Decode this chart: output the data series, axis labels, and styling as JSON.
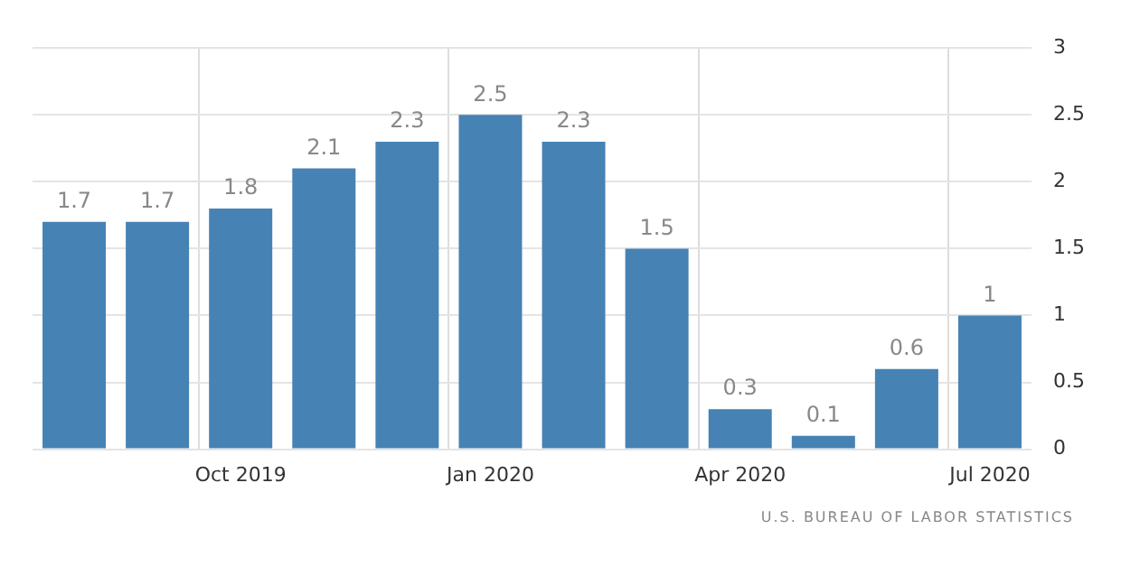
{
  "chart_data": {
    "type": "bar",
    "categories": [
      null,
      null,
      "Oct 2019",
      null,
      null,
      "Jan 2020",
      null,
      null,
      "Apr 2020",
      null,
      null,
      "Jul 2020"
    ],
    "values": [
      1.7,
      1.7,
      1.8,
      2.1,
      2.3,
      2.5,
      2.3,
      1.5,
      0.3,
      0.1,
      0.6,
      1
    ],
    "color": "#4682b4",
    "ylim": [
      0,
      3
    ],
    "yticks": [
      0,
      0.5,
      1,
      1.5,
      2,
      2.5,
      3
    ],
    "grid": true,
    "data_labels": true,
    "annotations": [
      "U.S. BUREAU OF LABOR STATISTICS"
    ]
  }
}
